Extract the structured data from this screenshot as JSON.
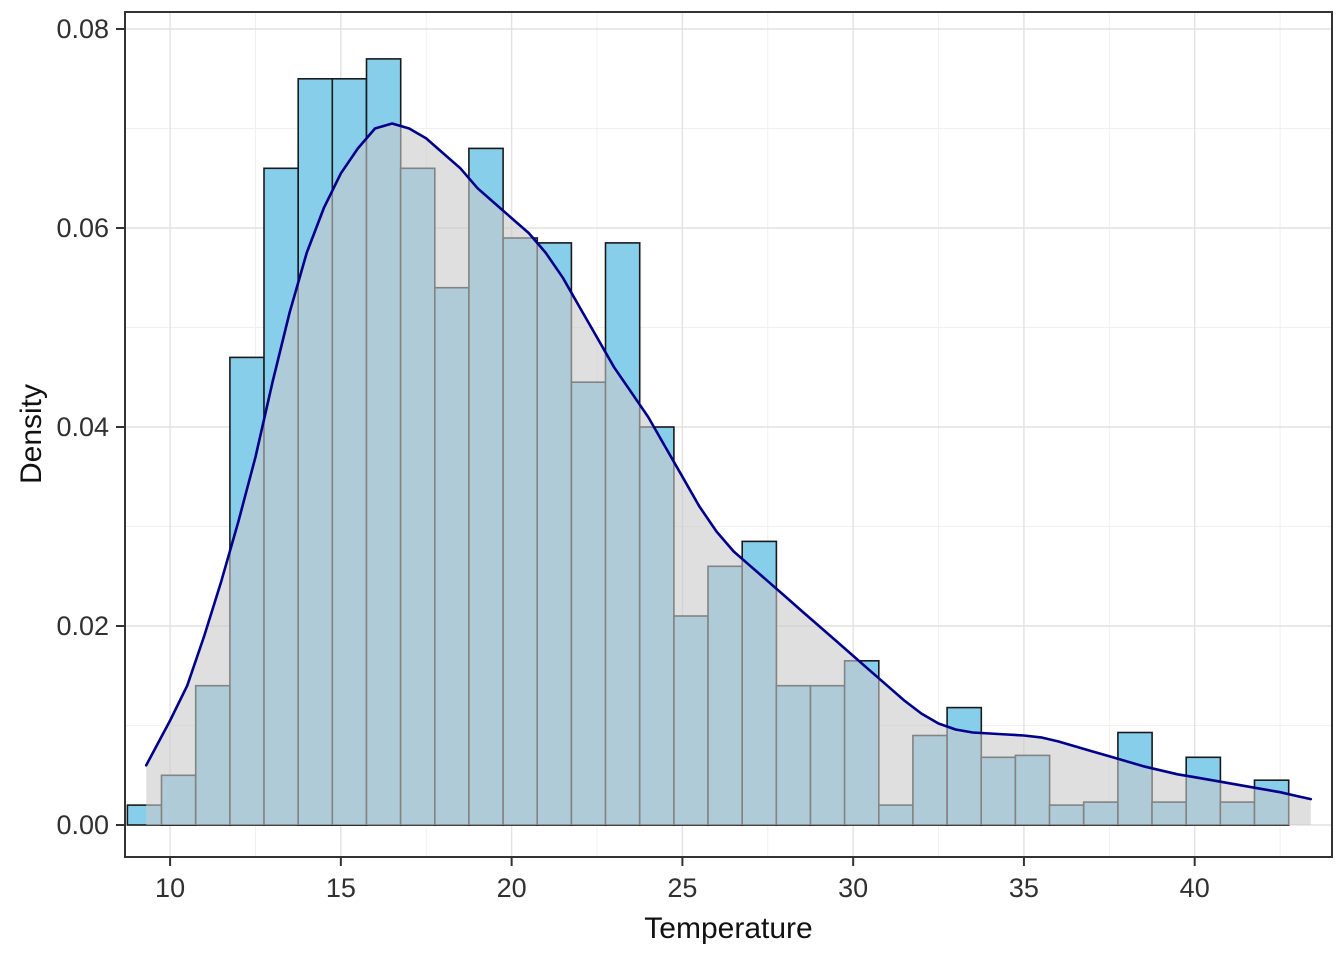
{
  "chart_data": {
    "type": "bar",
    "subtype": "histogram_with_density_overlay",
    "title": "",
    "xlabel": "Temperature",
    "ylabel": "Density",
    "xlim": [
      8.68,
      44.02
    ],
    "ylim": [
      0,
      0.08
    ],
    "x_ticks": [
      10,
      15,
      20,
      25,
      30,
      35,
      40
    ],
    "x_tick_labels": [
      "10",
      "15",
      "20",
      "25",
      "30",
      "35",
      "40"
    ],
    "y_ticks": [
      0,
      0.02,
      0.04,
      0.06,
      0.08
    ],
    "y_tick_labels": [
      "0.00",
      "0.02",
      "0.04",
      "0.06",
      "0.08"
    ],
    "grid": true,
    "legend": "none",
    "background": "#FFFFFF",
    "histogram": {
      "bin_start": 8.75,
      "bin_width": 1.0,
      "densities": [
        0.002,
        0.005,
        0.014,
        0.047,
        0.066,
        0.075,
        0.075,
        0.077,
        0.066,
        0.054,
        0.068,
        0.059,
        0.0585,
        0.0445,
        0.0585,
        0.04,
        0.021,
        0.026,
        0.0285,
        0.014,
        0.014,
        0.0165,
        0.002,
        0.009,
        0.0118,
        0.0068,
        0.007,
        0.002,
        0.0023,
        0.0093,
        0.0023,
        0.0068,
        0.0023,
        0.0045
      ],
      "fill": "#87CEEB",
      "stroke": "#1A1A1A"
    },
    "density_curve": {
      "x": [
        9.3,
        10,
        10.5,
        11,
        11.5,
        12,
        12.5,
        13,
        13.5,
        14,
        14.5,
        15,
        15.5,
        16,
        16.5,
        17,
        17.5,
        18,
        18.5,
        19,
        19.5,
        20,
        20.5,
        21,
        21.5,
        22,
        22.5,
        23,
        23.5,
        24,
        24.5,
        25,
        25.5,
        26,
        26.5,
        27,
        27.5,
        28,
        28.5,
        29,
        29.5,
        30,
        30.5,
        31,
        31.5,
        32,
        32.5,
        33,
        33.5,
        34,
        34.5,
        35,
        35.5,
        36,
        36.5,
        37,
        37.5,
        38,
        38.5,
        39,
        39.5,
        40,
        40.5,
        41,
        41.5,
        42,
        42.5,
        43,
        43.4
      ],
      "y": [
        0.006,
        0.0105,
        0.014,
        0.019,
        0.0245,
        0.0305,
        0.037,
        0.0445,
        0.0515,
        0.0575,
        0.062,
        0.0655,
        0.068,
        0.07,
        0.0705,
        0.07,
        0.069,
        0.0675,
        0.066,
        0.064,
        0.0625,
        0.061,
        0.0595,
        0.0575,
        0.055,
        0.052,
        0.049,
        0.046,
        0.0435,
        0.041,
        0.038,
        0.035,
        0.032,
        0.0295,
        0.0275,
        0.026,
        0.0245,
        0.023,
        0.0215,
        0.02,
        0.0185,
        0.017,
        0.0155,
        0.014,
        0.0125,
        0.0112,
        0.0102,
        0.0096,
        0.0093,
        0.0092,
        0.0091,
        0.009,
        0.0088,
        0.0084,
        0.0079,
        0.0074,
        0.0069,
        0.0064,
        0.0059,
        0.0055,
        0.0051,
        0.0048,
        0.0045,
        0.0042,
        0.0039,
        0.0036,
        0.0033,
        0.0029,
        0.0026
      ],
      "line_color": "#00008B",
      "area_fill": "#C9C9C9",
      "area_opacity": 0.6
    },
    "axis": {
      "tick_color": "#333333",
      "label_color": "#303030",
      "title_color": "#111111",
      "grid_major_color": "#E2E2E2",
      "grid_minor_color": "#F0F0F0",
      "panel_border_color": "#333333"
    }
  }
}
